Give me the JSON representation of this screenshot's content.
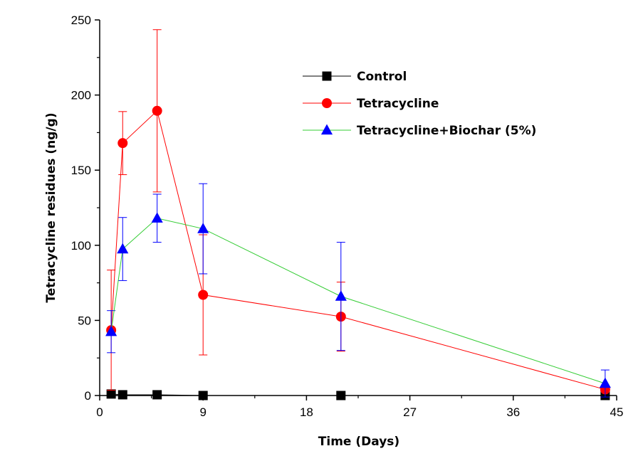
{
  "chart_data": {
    "type": "line",
    "xlabel": "Time (Days)",
    "ylabel": "Tetracycline residues (ng/g)",
    "xlim": [
      0,
      45
    ],
    "ylim": [
      0,
      250
    ],
    "xticks": [
      0,
      9,
      18,
      27,
      36,
      45
    ],
    "yticks": [
      0,
      50,
      100,
      150,
      200,
      250
    ],
    "grid": false,
    "legend_position": "top-right",
    "series": [
      {
        "name": "Control",
        "color": "#000000",
        "marker": "square",
        "x": [
          1,
          2,
          5,
          9,
          21,
          44
        ],
        "y": [
          1,
          0.5,
          0.5,
          0,
          0,
          0
        ],
        "error": [
          0,
          0,
          0,
          0,
          0,
          0
        ]
      },
      {
        "name": "Tetracycline",
        "color": "#ff0000",
        "marker": "circle",
        "x": [
          1,
          2,
          5,
          9,
          21,
          44
        ],
        "y": [
          43.5,
          168,
          189.5,
          67,
          52.5,
          4
        ],
        "error": [
          40,
          21,
          54,
          40,
          23,
          0
        ]
      },
      {
        "name": "Tetracycline+Biochar (5%)",
        "color": "#0000ff",
        "line_color": "#33cc33",
        "marker": "triangle",
        "x": [
          1,
          2,
          5,
          9,
          21,
          44
        ],
        "y": [
          42.5,
          97.5,
          118,
          111,
          66,
          8
        ],
        "error": [
          14,
          21,
          16,
          30,
          36,
          9
        ]
      }
    ]
  }
}
